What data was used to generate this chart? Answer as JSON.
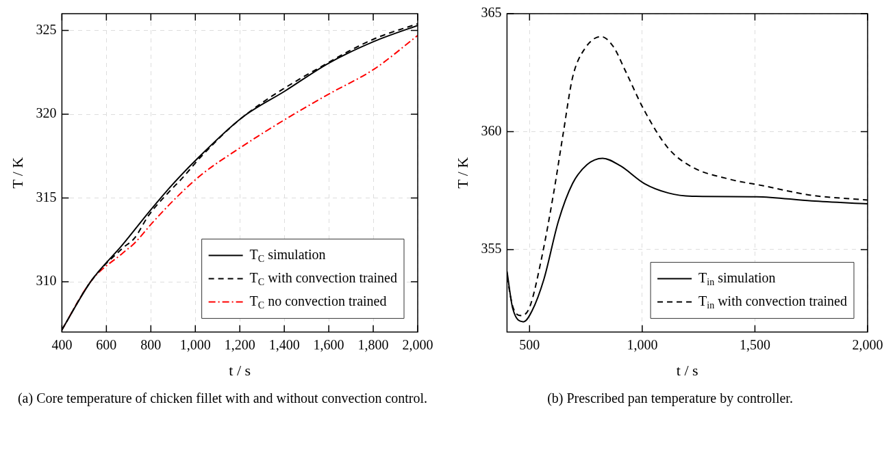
{
  "chart_data": [
    {
      "type": "line",
      "xlabel": "t / s",
      "ylabel": "T / K",
      "xlim": [
        400,
        2000
      ],
      "ylim": [
        307,
        326
      ],
      "xticks": [
        400,
        600,
        800,
        {
          "value": 1000,
          "label": "1,000"
        },
        {
          "value": 1200,
          "label": "1,200"
        },
        {
          "value": 1400,
          "label": "1,400"
        },
        {
          "value": 1600,
          "label": "1,600"
        },
        {
          "value": 1800,
          "label": "1,800"
        },
        {
          "value": 2000,
          "label": "2,000"
        }
      ],
      "yticks": [
        310,
        315,
        320,
        325
      ],
      "grid": true,
      "legend": "bottom right",
      "marker": "none",
      "series": [
        {
          "name": "T$_{C}$ simulation",
          "color": "#000000",
          "line_style": "solid",
          "x": [
            400,
            532,
            672,
            800,
            897,
            1005,
            1210,
            1405,
            1600,
            1805,
            2000
          ],
          "values": [
            307.14,
            310.06,
            312.2,
            314.3,
            315.8,
            317.3,
            319.8,
            321.4,
            323.05,
            324.35,
            325.3
          ]
        },
        {
          "name": "T$_{C}$ with convection trained",
          "color": "#000000",
          "line_style": "dashed",
          "x": [
            400,
            532,
            672,
            726,
            792,
            877,
            942,
            1028,
            1210,
            1600,
            1805,
            2000
          ],
          "values": [
            307.14,
            310.06,
            312.0,
            312.6,
            314.0,
            315.3,
            316.2,
            317.5,
            319.8,
            323.1,
            324.5,
            325.4
          ]
        },
        {
          "name": "T$_{C}$ no convection trained",
          "color": "#ff0000",
          "line_style": "dashdot",
          "x": [
            400,
            532,
            672,
            726,
            812,
            920,
            1028,
            1190,
            1405,
            1600,
            1805,
            2000
          ],
          "values": [
            307.14,
            310.06,
            311.7,
            312.3,
            313.6,
            315.1,
            316.4,
            317.9,
            319.7,
            321.2,
            322.7,
            324.7
          ]
        }
      ],
      "annotations": [
        "(a) Core temperature of chicken fillet with and without convection control."
      ]
    },
    {
      "type": "line",
      "xlabel": "t / s",
      "ylabel": "T / K",
      "xlim": [
        400,
        2000
      ],
      "ylim": [
        351.5,
        365
      ],
      "xticks": [
        500,
        {
          "value": 1000,
          "label": "1,000"
        },
        {
          "value": 1500,
          "label": "1,500"
        },
        {
          "value": 2000,
          "label": "2,000"
        }
      ],
      "yticks": [
        355,
        360,
        365
      ],
      "grid": true,
      "legend": "bottom right",
      "marker": "none",
      "series": [
        {
          "name": "T$_{in}$ simulation",
          "color": "#000000",
          "line_style": "solid",
          "x": [
            400,
            426,
            474,
            511,
            564,
            628,
            691,
            755,
            824,
            903,
            1009,
            1115,
            1221,
            1507,
            1751,
            2000
          ],
          "values": [
            354.07,
            352.48,
            351.94,
            352.4,
            353.75,
            356.2,
            357.8,
            358.6,
            358.87,
            358.55,
            357.8,
            357.4,
            357.26,
            357.24,
            357.06,
            356.94
          ]
        },
        {
          "name": "T$_{in}$ with convection trained",
          "color": "#000000",
          "line_style": "dashed",
          "x": [
            400,
            426,
            464,
            501,
            554,
            607,
            649,
            691,
            744,
            818,
            872,
            924,
            1009,
            1115,
            1221,
            1380,
            1539,
            1751,
            2000
          ],
          "values": [
            353.84,
            352.57,
            352.2,
            352.57,
            354.66,
            357.4,
            359.9,
            362.3,
            363.5,
            364.03,
            363.6,
            362.6,
            360.9,
            359.3,
            358.5,
            358.0,
            357.7,
            357.3,
            357.1
          ]
        }
      ],
      "annotations": [
        "(b) Prescribed pan temperature by controller."
      ]
    }
  ]
}
